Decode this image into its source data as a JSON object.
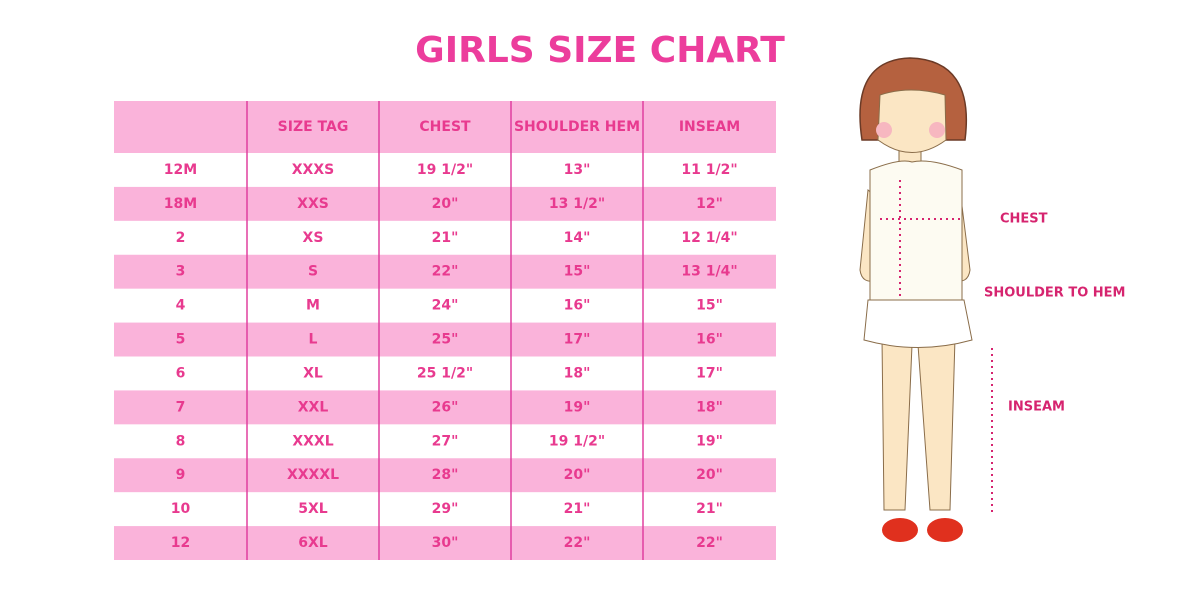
{
  "title": "GIRLS SIZE CHART",
  "table": {
    "header": [
      "SIZE TAG",
      "CHEST",
      "SHOULDER HEM",
      "INSEAM"
    ],
    "rows": [
      [
        "12M",
        "XXXS",
        "19 1/2\"",
        "13\"",
        "11 1/2\""
      ],
      [
        "18M",
        "XXS",
        "20\"",
        "13 1/2\"",
        "12\""
      ],
      [
        "2",
        "XS",
        "21\"",
        "14\"",
        "12 1/4\""
      ],
      [
        "3",
        "S",
        "22\"",
        "15\"",
        "13 1/4\""
      ],
      [
        "4",
        "M",
        "24\"",
        "16\"",
        "15\""
      ],
      [
        "5",
        "L",
        "25\"",
        "17\"",
        "16\""
      ],
      [
        "6",
        "XL",
        "25 1/2\"",
        "18\"",
        "17\""
      ],
      [
        "7",
        "XXL",
        "26\"",
        "19\"",
        "18\""
      ],
      [
        "8",
        "XXXL",
        "27\"",
        "19 1/2\"",
        "19\""
      ],
      [
        "9",
        "XXXXL",
        "28\"",
        "20\"",
        "20\""
      ],
      [
        "10",
        "5XL",
        "29\"",
        "21\"",
        "21\""
      ],
      [
        "12",
        "6XL",
        "30\"",
        "22\"",
        "22\""
      ]
    ]
  },
  "figure": {
    "labels": [
      "CHEST",
      "SHOULDER TO HEM",
      "INSEAM"
    ]
  }
}
